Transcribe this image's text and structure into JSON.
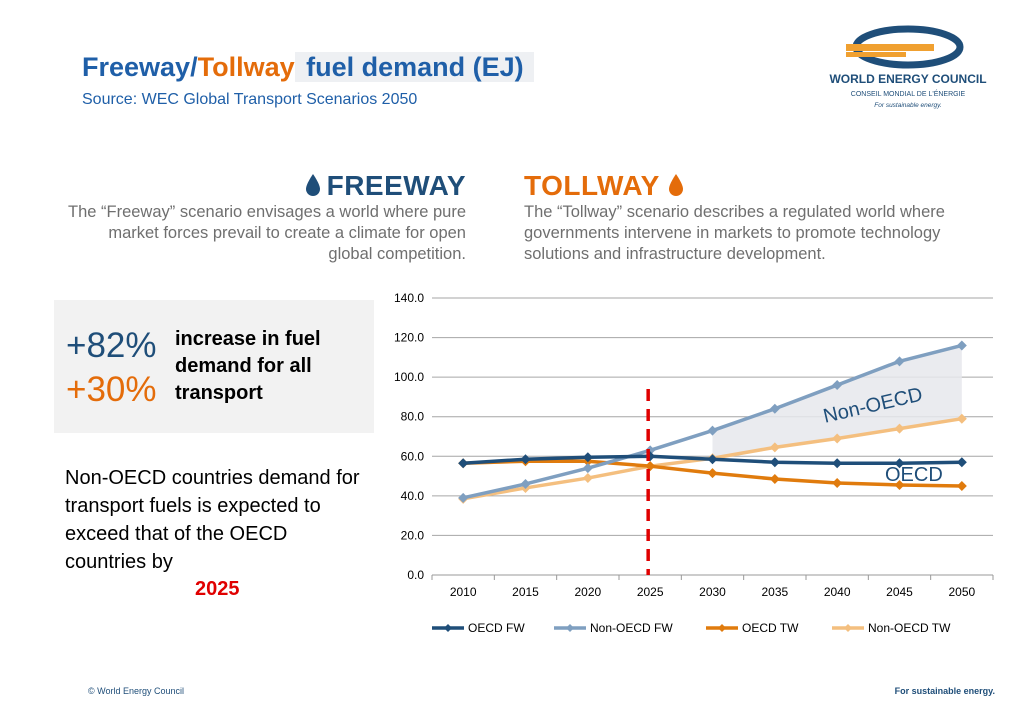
{
  "header": {
    "title_freeway": "Freeway",
    "title_slash": "/",
    "title_tollway": "Tollway",
    "title_rest": " fuel demand (EJ)",
    "subtitle": "Source: WEC Global Transport Scenarios 2050"
  },
  "logo": {
    "name": "WORLD ENERGY COUNCIL",
    "sub": "CONSEIL MONDIAL DE L'ÉNERGIE",
    "tagline": "For sustainable energy."
  },
  "scenarios": {
    "freeway": {
      "heading": "FREEWAY",
      "text": "The “Freeway” scenario envisages a world where pure market forces prevail to create a climate for open global competition.",
      "icon": "blue-drop-icon"
    },
    "tollway": {
      "heading": "TOLLWAY",
      "text": "The “Tollway” scenario describes a regulated world where governments intervene in markets to promote technology solutions and infrastructure development.",
      "icon": "orange-drop-icon"
    }
  },
  "stats": {
    "freeway_pct": "+82%",
    "tollway_pct": "+30%",
    "label": "increase in fuel demand for all transport"
  },
  "note": {
    "text": "Non-OECD countries demand for transport fuels is expected to exceed that of the OECD countries by",
    "year": "2025"
  },
  "colors": {
    "oecd_fw": "#1f4e79",
    "non_oecd_fw": "#7f9fc0",
    "oecd_tw": "#e07b0d",
    "non_oecd_tw": "#f4bf7f",
    "accent_orange": "#e46c0a",
    "marker_red": "#e00000"
  },
  "chart_data": {
    "type": "line",
    "x": [
      "2010",
      "2015",
      "2020",
      "2025",
      "2030",
      "2035",
      "2040",
      "2045",
      "2050"
    ],
    "ylim": [
      0,
      140
    ],
    "yticks": [
      "0.0",
      "20.0",
      "40.0",
      "60.0",
      "80.0",
      "100.0",
      "120.0",
      "140.0"
    ],
    "grid": true,
    "legend": "bottom",
    "series": [
      {
        "name": "OECD FW",
        "values": [
          56.5,
          58.5,
          59.5,
          60,
          58.5,
          57,
          56.5,
          56.5,
          57
        ]
      },
      {
        "name": "Non-OECD FW",
        "values": [
          39,
          46,
          54,
          63,
          73,
          84,
          96,
          108,
          116
        ]
      },
      {
        "name": "OECD TW",
        "values": [
          56.5,
          57.5,
          57.5,
          55,
          51.5,
          48.5,
          46.5,
          45.5,
          45
        ]
      },
      {
        "name": "Non-OECD TW",
        "values": [
          38.5,
          44,
          49,
          55,
          59,
          64.5,
          69,
          74,
          79
        ]
      }
    ],
    "annotations": [
      "Non-OECD",
      "OECD"
    ],
    "marker_x": "2025"
  },
  "footer": {
    "left": "© World Energy Council",
    "right": "For sustainable energy."
  }
}
